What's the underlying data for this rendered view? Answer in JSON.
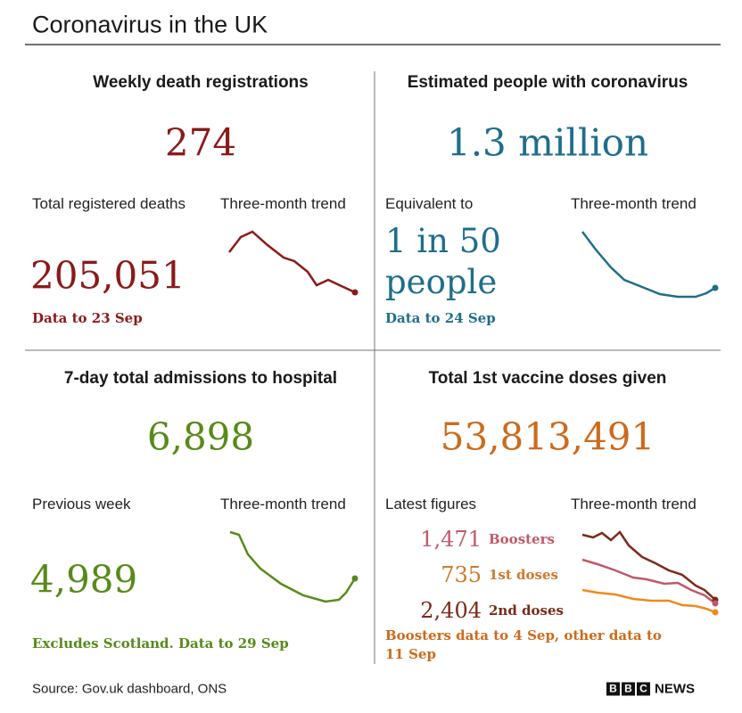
{
  "title": "Coronavirus in the UK",
  "panels": [
    {
      "heading": "Weekly death registrations",
      "value": "274",
      "sub_label": "Total registered deaths",
      "trend_label": "Three-month trend",
      "sub_value": "205,051",
      "note": "Data to 23 Sep"
    },
    {
      "heading": "Estimated people with coronavirus",
      "value": "1.3 million",
      "sub_label": "Equivalent to",
      "trend_label": "Three-month trend",
      "sub_value": "1 in 50 people",
      "note": "Data to 24 Sep"
    },
    {
      "heading": "7-day total admissions to hospital",
      "value": "6,898",
      "sub_label": "Previous week",
      "trend_label": "Three-month trend",
      "sub_value": "4,989",
      "note": "Excludes Scotland. Data to 29 Sep"
    },
    {
      "heading": "Total 1st vaccine doses given",
      "value": "53,813,491",
      "sub_label": "Latest figures",
      "trend_label": "Three-month trend",
      "breakdown": [
        {
          "value": "1,471",
          "label": "Boosters"
        },
        {
          "value": "735",
          "label": "1st doses"
        },
        {
          "value": "2,404",
          "label": "2nd doses"
        }
      ],
      "note": "Boosters data to 4 Sep, other data to 11 Sep"
    }
  ],
  "source": "Source: Gov.uk dashboard, ONS",
  "logo": {
    "letters": [
      "B",
      "B",
      "C"
    ],
    "word": "NEWS"
  }
}
